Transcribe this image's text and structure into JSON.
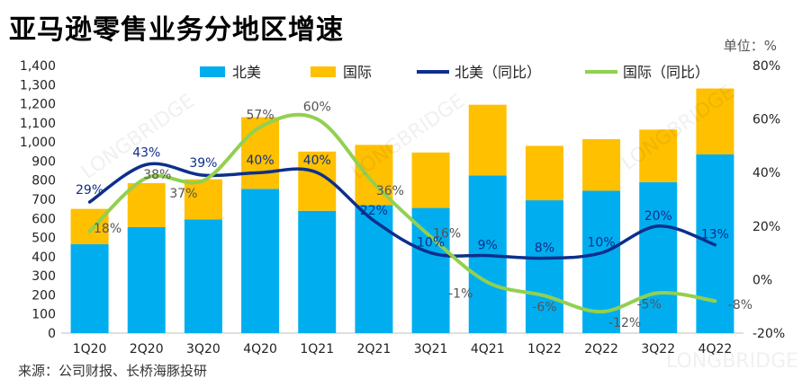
{
  "chart_data": {
    "type": "bar",
    "title": "亚马逊零售业务分地区增速",
    "unit_label": "单位：%",
    "source": "来源：公司财报、长桥海豚投研",
    "watermark": "LONGBRIDGE",
    "categories": [
      "1Q20",
      "2Q20",
      "3Q20",
      "4Q20",
      "1Q21",
      "2Q21",
      "3Q21",
      "4Q21",
      "1Q22",
      "2Q22",
      "3Q22",
      "4Q22"
    ],
    "stacked_series": [
      {
        "name": "北美",
        "color": "#00aeef",
        "values": [
          465,
          555,
          595,
          755,
          640,
          670,
          655,
          825,
          695,
          745,
          790,
          935
        ]
      },
      {
        "name": "国际",
        "color": "#ffc000",
        "values": [
          185,
          230,
          210,
          375,
          310,
          315,
          290,
          370,
          285,
          270,
          275,
          345
        ]
      }
    ],
    "line_series": [
      {
        "name": "北美（同比）",
        "color": "#0d2f8c",
        "values": [
          29,
          43,
          39,
          40,
          40,
          22,
          10,
          9,
          8,
          10,
          20,
          13
        ],
        "labels": [
          "29%",
          "43%",
          "39%",
          "40%",
          "40%",
          "22%",
          "10%",
          "9%",
          "8%",
          "10%",
          "20%",
          "13%"
        ]
      },
      {
        "name": "国际（同比）",
        "color": "#92d050",
        "values": [
          18,
          38,
          37,
          57,
          60,
          36,
          16,
          -1,
          -6,
          -12,
          -5,
          -8
        ],
        "labels": [
          "18%",
          "38%",
          "37%",
          "57%",
          "60%",
          "36%",
          "16%",
          "-1%",
          "-6%",
          "-12%",
          "-5%",
          "-8%"
        ]
      }
    ],
    "left_axis": {
      "min": 0,
      "max": 1400,
      "step": 100,
      "tick_labels": [
        "0",
        "100",
        "200",
        "300",
        "400",
        "500",
        "600",
        "700",
        "800",
        "900",
        "1,000",
        "1,100",
        "1,200",
        "1,300",
        "1,400"
      ]
    },
    "right_axis": {
      "min": -20,
      "max": 80,
      "step": 20,
      "tick_labels": [
        "-20%",
        "0%",
        "20%",
        "40%",
        "60%",
        "80%"
      ]
    },
    "legend": [
      "北美",
      "国际",
      "北美（同比）",
      "国际（同比）"
    ],
    "legend_position": "top-center",
    "grid": false
  }
}
